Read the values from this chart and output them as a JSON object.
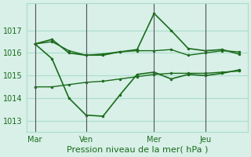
{
  "background_color": "#d8f0e8",
  "grid_color": "#aaddcc",
  "line_color": "#1a6b1a",
  "xlabel": "Pression niveau de la mer( hPa )",
  "ylim": [
    1012.5,
    1018.2
  ],
  "yticks": [
    1013,
    1014,
    1015,
    1016,
    1017
  ],
  "x_tick_labels": [
    "Mar",
    "Ven",
    "Mer",
    "Jeu"
  ],
  "x_tick_positions": [
    0,
    3,
    7,
    10
  ],
  "x_vlines": [
    0,
    3,
    7,
    10
  ],
  "num_points": 13,
  "series": [
    [
      1016.4,
      1016.5,
      1016.1,
      1015.9,
      1015.9,
      1016.05,
      1016.1,
      1016.1,
      1016.15,
      1015.9,
      1016.0,
      1016.1,
      1016.05
    ],
    [
      1016.4,
      1016.6,
      1016.0,
      1015.9,
      1015.95,
      1016.05,
      1016.15,
      1017.75,
      1017.0,
      1016.2,
      1016.1,
      1016.15,
      1015.95
    ],
    [
      1016.4,
      1015.75,
      1014.0,
      1013.25,
      1013.2,
      1014.15,
      1015.05,
      1015.15,
      1014.85,
      1015.05,
      1015.0,
      1015.1,
      1015.25
    ],
    [
      1014.5,
      1014.5,
      1014.6,
      1014.7,
      1014.75,
      1014.85,
      1014.95,
      1015.05,
      1015.1,
      1015.1,
      1015.1,
      1015.15,
      1015.2
    ]
  ],
  "linewidths": [
    1.0,
    1.2,
    1.2,
    1.0
  ],
  "markers": [
    "o",
    "o",
    "o",
    "o"
  ],
  "marker_sizes": [
    2,
    2,
    2,
    2
  ]
}
